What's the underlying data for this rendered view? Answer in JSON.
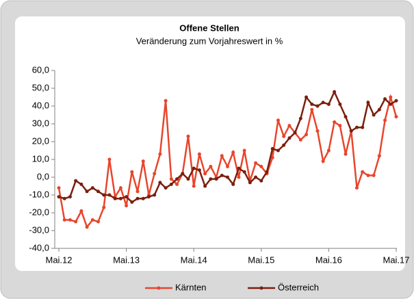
{
  "chart_data": {
    "type": "line",
    "title": "Offene Stellen",
    "subtitle": "Veränderung zum Vorjahreswert in %",
    "categories": [
      "Mai.12",
      null,
      null,
      null,
      null,
      null,
      null,
      null,
      null,
      null,
      null,
      null,
      "Mai.13",
      null,
      null,
      null,
      null,
      null,
      null,
      null,
      null,
      null,
      null,
      null,
      "Mai.14",
      null,
      null,
      null,
      null,
      null,
      null,
      null,
      null,
      null,
      null,
      null,
      "Mai.15",
      null,
      null,
      null,
      null,
      null,
      null,
      null,
      null,
      null,
      null,
      null,
      "Mai.16",
      null,
      null,
      null,
      null,
      null,
      null,
      null,
      null,
      null,
      null,
      null,
      "Mai.17"
    ],
    "series": [
      {
        "name": "Kärnten",
        "color": "#e8452c",
        "values": [
          -6,
          -24,
          -24,
          -25,
          -19,
          -28,
          -24,
          -25,
          -17,
          10,
          -11,
          -6,
          -16,
          3,
          -8,
          9,
          -10,
          2,
          13,
          43,
          -1,
          -4,
          2,
          23,
          -5,
          13,
          2,
          6,
          0,
          12,
          6,
          14,
          0,
          15,
          -2,
          8,
          6,
          2,
          11,
          32,
          23,
          29,
          25,
          21,
          24,
          38,
          26,
          9,
          15,
          31,
          29,
          13,
          26,
          -6,
          3,
          1,
          1,
          12,
          32,
          45,
          34
        ]
      },
      {
        "name": "Österreich",
        "color": "#7b1f0e",
        "values": [
          -11,
          -12,
          -11,
          -2,
          -4,
          -8,
          -6,
          -8,
          -10,
          -10,
          -12,
          -12,
          -11,
          -14,
          -12,
          -12,
          -11,
          -10,
          -3,
          -6,
          -4,
          -1,
          2,
          -1,
          5,
          4,
          -5,
          -1,
          -1,
          1,
          0,
          -4,
          5,
          3,
          -3,
          0,
          -2,
          3,
          16,
          15,
          18,
          22,
          25,
          33,
          45,
          41,
          40,
          42,
          41,
          48,
          41,
          34,
          26,
          28,
          28,
          42,
          35,
          38,
          44,
          41,
          43
        ]
      }
    ],
    "ylim": [
      -40,
      60
    ],
    "yticks": [
      {
        "value": -40,
        "label": "-40,0"
      },
      {
        "value": -30,
        "label": "-30,0"
      },
      {
        "value": -20,
        "label": "-20,0"
      },
      {
        "value": -10,
        "label": "-10,0"
      },
      {
        "value": 0,
        "label": "0,0"
      },
      {
        "value": 10,
        "label": "10,0"
      },
      {
        "value": 20,
        "label": "20,0"
      },
      {
        "value": 30,
        "label": "30,0"
      },
      {
        "value": 40,
        "label": "40,0"
      },
      {
        "value": 50,
        "label": "50,0"
      },
      {
        "value": 60,
        "label": "60,0"
      }
    ],
    "grid": false,
    "legend": "bottom"
  }
}
